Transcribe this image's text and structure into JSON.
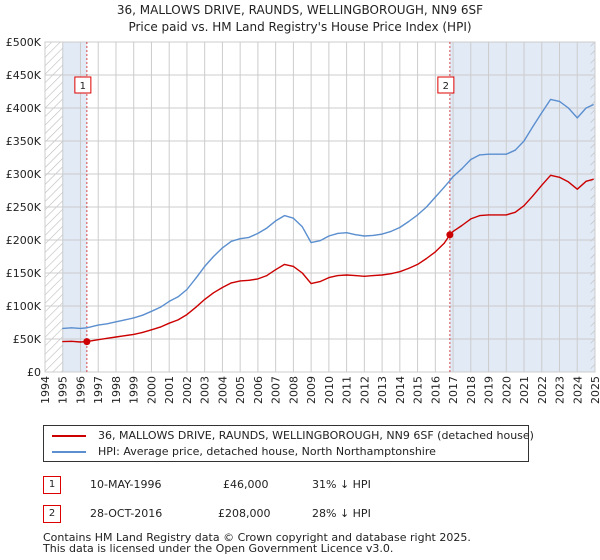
{
  "title": "36, MALLOWS DRIVE, RAUNDS, WELLINGBOROUGH, NN9 6SF",
  "subtitle": "Price paid vs. HM Land Registry's House Price Index (HPI)",
  "colors": {
    "property": "#cc0000",
    "hpi": "#5b8fcf",
    "shade": "#dde6f4",
    "grid": "#cccccc",
    "marker_border": "#dd0000"
  },
  "legend": [
    {
      "label": "36, MALLOWS DRIVE, RAUNDS, WELLINGBOROUGH, NN9 6SF (detached house)",
      "color": "#cc0000"
    },
    {
      "label": "HPI: Average price, detached house, North Northamptonshire",
      "color": "#5b8fcf"
    }
  ],
  "sales": [
    {
      "id": "1",
      "date": "10-MAY-1996",
      "price": "£46,000",
      "delta": "31% ↓ HPI"
    },
    {
      "id": "2",
      "date": "28-OCT-2016",
      "price": "£208,000",
      "delta": "28% ↓ HPI"
    }
  ],
  "footer": [
    "Contains HM Land Registry data © Crown copyright and database right 2025.",
    "This data is licensed under the Open Government Licence v3.0."
  ],
  "chart_data": {
    "type": "line",
    "title": "36, MALLOWS DRIVE, RAUNDS, WELLINGBOROUGH, NN9 6SF",
    "subtitle": "Price paid vs. HM Land Registry's House Price Index (HPI)",
    "xlabel": "",
    "ylabel": "",
    "xlim": [
      1994,
      2025
    ],
    "ylim": [
      0,
      500000
    ],
    "x_ticks": [
      "1994",
      "1995",
      "1996",
      "1997",
      "1998",
      "1999",
      "2000",
      "2001",
      "2002",
      "2003",
      "2004",
      "2005",
      "2006",
      "2007",
      "2008",
      "2009",
      "2010",
      "2011",
      "2012",
      "2013",
      "2014",
      "2015",
      "2016",
      "2017",
      "2018",
      "2019",
      "2020",
      "2021",
      "2022",
      "2023",
      "2024",
      "2025"
    ],
    "y_ticks": [
      {
        "value": 0,
        "label": "£0"
      },
      {
        "value": 50000,
        "label": "£50K"
      },
      {
        "value": 100000,
        "label": "£100K"
      },
      {
        "value": 150000,
        "label": "£150K"
      },
      {
        "value": 200000,
        "label": "£200K"
      },
      {
        "value": 250000,
        "label": "£250K"
      },
      {
        "value": 300000,
        "label": "£300K"
      },
      {
        "value": 350000,
        "label": "£350K"
      },
      {
        "value": 400000,
        "label": "£400K"
      },
      {
        "value": 450000,
        "label": "£450K"
      },
      {
        "value": 500000,
        "label": "£500K"
      }
    ],
    "grid": true,
    "shaded_ranges": [
      [
        1995.0,
        1996.36
      ],
      [
        2016.82,
        2025.0
      ]
    ],
    "hatched_ranges": [
      [
        1994.0,
        1995.0
      ],
      [
        2024.75,
        2025.0
      ]
    ],
    "events": [
      {
        "label": "1",
        "x": 1996.36,
        "y": 46000
      },
      {
        "label": "2",
        "x": 2016.82,
        "y": 208000
      }
    ],
    "series": [
      {
        "name": "36, MALLOWS DRIVE, RAUNDS, WELLINGBOROUGH, NN9 6SF (detached house)",
        "color": "#cc0000",
        "points": [
          [
            1995.0,
            46000
          ],
          [
            1995.5,
            46500
          ],
          [
            1996.0,
            45500
          ],
          [
            1996.36,
            46000
          ],
          [
            1997.0,
            49000
          ],
          [
            1997.5,
            51000
          ],
          [
            1998.0,
            53000
          ],
          [
            1998.5,
            55000
          ],
          [
            1999.0,
            57000
          ],
          [
            1999.5,
            60000
          ],
          [
            2000.0,
            64000
          ],
          [
            2000.5,
            68000
          ],
          [
            2001.0,
            74000
          ],
          [
            2001.5,
            79000
          ],
          [
            2002.0,
            87000
          ],
          [
            2002.5,
            98000
          ],
          [
            2003.0,
            110000
          ],
          [
            2003.5,
            120000
          ],
          [
            2004.0,
            128000
          ],
          [
            2004.5,
            135000
          ],
          [
            2005.0,
            138000
          ],
          [
            2005.5,
            139000
          ],
          [
            2006.0,
            141000
          ],
          [
            2006.5,
            146000
          ],
          [
            2007.0,
            155000
          ],
          [
            2007.5,
            163000
          ],
          [
            2008.0,
            160000
          ],
          [
            2008.5,
            150000
          ],
          [
            2009.0,
            134000
          ],
          [
            2009.5,
            137000
          ],
          [
            2010.0,
            143000
          ],
          [
            2010.5,
            146000
          ],
          [
            2011.0,
            147000
          ],
          [
            2011.5,
            146000
          ],
          [
            2012.0,
            145000
          ],
          [
            2012.5,
            146000
          ],
          [
            2013.0,
            147000
          ],
          [
            2013.5,
            149000
          ],
          [
            2014.0,
            152000
          ],
          [
            2014.5,
            157000
          ],
          [
            2015.0,
            163000
          ],
          [
            2015.5,
            172000
          ],
          [
            2016.0,
            182000
          ],
          [
            2016.5,
            195000
          ],
          [
            2016.82,
            208000
          ],
          [
            2017.0,
            213000
          ],
          [
            2017.5,
            222000
          ],
          [
            2018.0,
            232000
          ],
          [
            2018.5,
            237000
          ],
          [
            2019.0,
            238000
          ],
          [
            2019.5,
            238000
          ],
          [
            2020.0,
            238000
          ],
          [
            2020.5,
            242000
          ],
          [
            2021.0,
            252000
          ],
          [
            2021.5,
            267000
          ],
          [
            2022.0,
            283000
          ],
          [
            2022.5,
            298000
          ],
          [
            2023.0,
            295000
          ],
          [
            2023.5,
            288000
          ],
          [
            2024.0,
            277000
          ],
          [
            2024.5,
            289000
          ],
          [
            2024.9,
            292000
          ]
        ]
      },
      {
        "name": "HPI: Average price, detached house, North Northamptonshire",
        "color": "#5b8fcf",
        "points": [
          [
            1995.0,
            66000
          ],
          [
            1995.5,
            67000
          ],
          [
            1996.0,
            66000
          ],
          [
            1996.36,
            67000
          ],
          [
            1997.0,
            71000
          ],
          [
            1997.5,
            73000
          ],
          [
            1998.0,
            76000
          ],
          [
            1998.5,
            79000
          ],
          [
            1999.0,
            82000
          ],
          [
            1999.5,
            86000
          ],
          [
            2000.0,
            92000
          ],
          [
            2000.5,
            98000
          ],
          [
            2001.0,
            107000
          ],
          [
            2001.5,
            114000
          ],
          [
            2002.0,
            125000
          ],
          [
            2002.5,
            142000
          ],
          [
            2003.0,
            160000
          ],
          [
            2003.5,
            175000
          ],
          [
            2004.0,
            188000
          ],
          [
            2004.5,
            198000
          ],
          [
            2005.0,
            202000
          ],
          [
            2005.5,
            204000
          ],
          [
            2006.0,
            210000
          ],
          [
            2006.5,
            218000
          ],
          [
            2007.0,
            229000
          ],
          [
            2007.5,
            237000
          ],
          [
            2008.0,
            233000
          ],
          [
            2008.5,
            220000
          ],
          [
            2009.0,
            196000
          ],
          [
            2009.5,
            199000
          ],
          [
            2010.0,
            206000
          ],
          [
            2010.5,
            210000
          ],
          [
            2011.0,
            211000
          ],
          [
            2011.5,
            208000
          ],
          [
            2012.0,
            206000
          ],
          [
            2012.5,
            207000
          ],
          [
            2013.0,
            209000
          ],
          [
            2013.5,
            213000
          ],
          [
            2014.0,
            219000
          ],
          [
            2014.5,
            228000
          ],
          [
            2015.0,
            238000
          ],
          [
            2015.5,
            250000
          ],
          [
            2016.0,
            265000
          ],
          [
            2016.5,
            280000
          ],
          [
            2016.82,
            290000
          ],
          [
            2017.0,
            296000
          ],
          [
            2017.5,
            308000
          ],
          [
            2018.0,
            322000
          ],
          [
            2018.5,
            329000
          ],
          [
            2019.0,
            330000
          ],
          [
            2019.5,
            330000
          ],
          [
            2020.0,
            330000
          ],
          [
            2020.5,
            336000
          ],
          [
            2021.0,
            350000
          ],
          [
            2021.5,
            372000
          ],
          [
            2022.0,
            393000
          ],
          [
            2022.5,
            413000
          ],
          [
            2023.0,
            410000
          ],
          [
            2023.5,
            400000
          ],
          [
            2024.0,
            385000
          ],
          [
            2024.5,
            400000
          ],
          [
            2024.9,
            405000
          ]
        ]
      }
    ]
  }
}
